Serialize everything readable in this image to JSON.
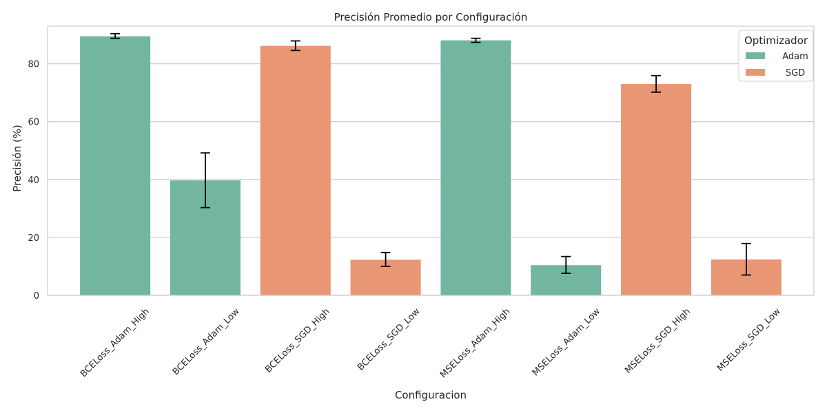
{
  "chart_data": {
    "type": "bar",
    "title": "Precisión Promedio por Configuración",
    "xlabel": "Configuracion",
    "ylabel": "Precisión (%)",
    "ylim": [
      0,
      93
    ],
    "yticks": [
      0,
      20,
      40,
      60,
      80
    ],
    "grid": "horizontal",
    "legend": {
      "title": "Optimizador",
      "position": "top-right",
      "entries": [
        {
          "name": "Adam",
          "color": "#72b6a1"
        },
        {
          "name": "SGD",
          "color": "#e99675"
        }
      ]
    },
    "categories": [
      "BCELoss_Adam_High",
      "BCELoss_Adam_Low",
      "BCELoss_SGD_High",
      "BCELoss_SGD_Low",
      "MSELoss_Adam_High",
      "MSELoss_Adam_Low",
      "MSELoss_SGD_High",
      "MSELoss_SGD_Low"
    ],
    "optimizer": [
      "Adam",
      "Adam",
      "SGD",
      "SGD",
      "Adam",
      "Adam",
      "SGD",
      "SGD"
    ],
    "values": [
      89.5,
      39.7,
      86.2,
      12.3,
      88.1,
      10.4,
      73.0,
      12.4
    ],
    "error_low": [
      88.8,
      30.3,
      84.6,
      10.0,
      87.4,
      7.6,
      70.2,
      7.0
    ],
    "error_high": [
      90.4,
      49.2,
      87.9,
      14.8,
      88.8,
      13.4,
      75.9,
      17.9
    ]
  }
}
